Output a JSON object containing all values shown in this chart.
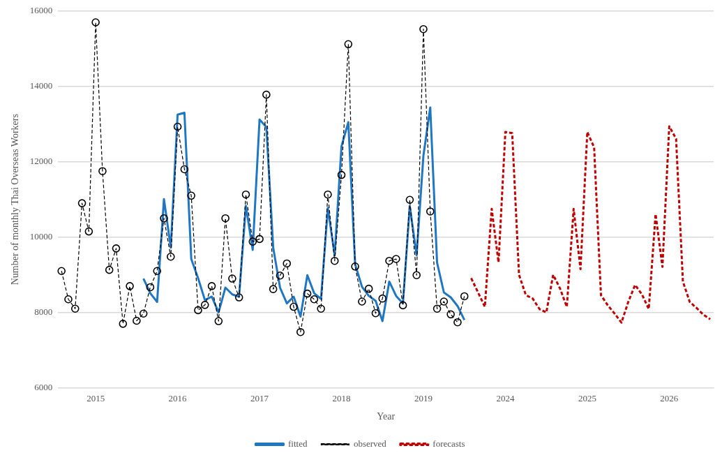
{
  "chart_data": {
    "type": "line",
    "xlabel": "Year",
    "ylabel": "Number of monthly Thai Overseas Workers",
    "categories": [
      null,
      null,
      null,
      null,
      null,
      "2015",
      null,
      null,
      null,
      null,
      null,
      null,
      null,
      null,
      null,
      null,
      null,
      "2016",
      null,
      null,
      null,
      null,
      null,
      null,
      null,
      null,
      null,
      null,
      null,
      "2017",
      null,
      null,
      null,
      null,
      null,
      null,
      null,
      null,
      null,
      null,
      null,
      "2018",
      null,
      null,
      null,
      null,
      null,
      null,
      null,
      null,
      null,
      null,
      null,
      "2019",
      null,
      null,
      null,
      null,
      null,
      null,
      null,
      null,
      null,
      null,
      null,
      "2024",
      null,
      null,
      null,
      null,
      null,
      null,
      null,
      null,
      null,
      null,
      null,
      "2025",
      null,
      null,
      null,
      null,
      null,
      null,
      null,
      null,
      null,
      null,
      null,
      "2026",
      null,
      null,
      null,
      null,
      null,
      null
    ],
    "series": [
      {
        "name": "fitted",
        "color": "#1f77c4",
        "line_style": "solid",
        "marker": "none",
        "values": [
          null,
          null,
          null,
          null,
          null,
          null,
          null,
          null,
          null,
          null,
          null,
          null,
          8900,
          8510,
          8280,
          11010,
          9720,
          13250,
          13300,
          9420,
          8910,
          8330,
          8420,
          8000,
          8660,
          8480,
          8420,
          10830,
          9660,
          13120,
          12920,
          9720,
          8660,
          8240,
          8420,
          7890,
          8990,
          8510,
          8360,
          10770,
          9520,
          12410,
          13050,
          9280,
          8680,
          8440,
          8310,
          7770,
          8820,
          8440,
          8240,
          10830,
          9520,
          12160,
          13440,
          9320,
          8530,
          8400,
          8170,
          7800,
          null,
          null,
          null,
          null,
          null,
          null,
          null,
          null,
          null,
          null,
          null,
          null,
          null,
          null,
          null,
          null,
          null,
          null,
          null,
          null,
          null,
          null,
          null,
          null,
          null,
          null,
          null,
          null,
          null,
          null,
          null,
          null,
          null,
          null,
          null,
          null
        ]
      },
      {
        "name": "observed",
        "color": "#000000",
        "line_style": "dashed",
        "marker": "circle",
        "values": [
          9100,
          8350,
          8100,
          10900,
          10150,
          15700,
          11750,
          9130,
          9700,
          7700,
          8700,
          7780,
          7970,
          8670,
          9100,
          10500,
          9480,
          12930,
          11800,
          11100,
          8060,
          8200,
          8700,
          7770,
          10500,
          8900,
          8400,
          11130,
          9880,
          9950,
          13780,
          8620,
          8980,
          9300,
          8150,
          7480,
          8500,
          8350,
          8100,
          11130,
          9370,
          11650,
          15120,
          9220,
          8290,
          8630,
          7980,
          8370,
          9370,
          9420,
          8190,
          10990,
          8990,
          15520,
          10680,
          8100,
          8290,
          7950,
          7740,
          8430,
          null,
          null,
          null,
          null,
          null,
          null,
          null,
          null,
          null,
          null,
          null,
          null,
          null,
          null,
          null,
          null,
          null,
          null,
          null,
          null,
          null,
          null,
          null,
          null,
          null,
          null,
          null,
          null,
          null,
          null,
          null,
          null,
          null,
          null,
          null,
          null
        ]
      },
      {
        "name": "forecasts",
        "color": "#c00000",
        "line_style": "dashed",
        "marker": "none",
        "values": [
          null,
          null,
          null,
          null,
          null,
          null,
          null,
          null,
          null,
          null,
          null,
          null,
          null,
          null,
          null,
          null,
          null,
          null,
          null,
          null,
          null,
          null,
          null,
          null,
          null,
          null,
          null,
          null,
          null,
          null,
          null,
          null,
          null,
          null,
          null,
          null,
          null,
          null,
          null,
          null,
          null,
          null,
          null,
          null,
          null,
          null,
          null,
          null,
          null,
          null,
          null,
          null,
          null,
          null,
          null,
          null,
          null,
          null,
          null,
          null,
          8910,
          8530,
          8150,
          10750,
          9330,
          12790,
          12760,
          9000,
          8460,
          8370,
          8090,
          8000,
          9000,
          8640,
          8150,
          10750,
          9150,
          12790,
          12380,
          8460,
          8190,
          7970,
          7730,
          8280,
          8730,
          8480,
          8090,
          10610,
          9210,
          12940,
          12610,
          8820,
          8280,
          8120,
          7940,
          7820
        ]
      }
    ],
    "ylim": [
      6000,
      16000
    ],
    "yticks": [
      6000,
      8000,
      10000,
      12000,
      14000,
      16000
    ],
    "grid": "y",
    "legend": "bottom"
  }
}
